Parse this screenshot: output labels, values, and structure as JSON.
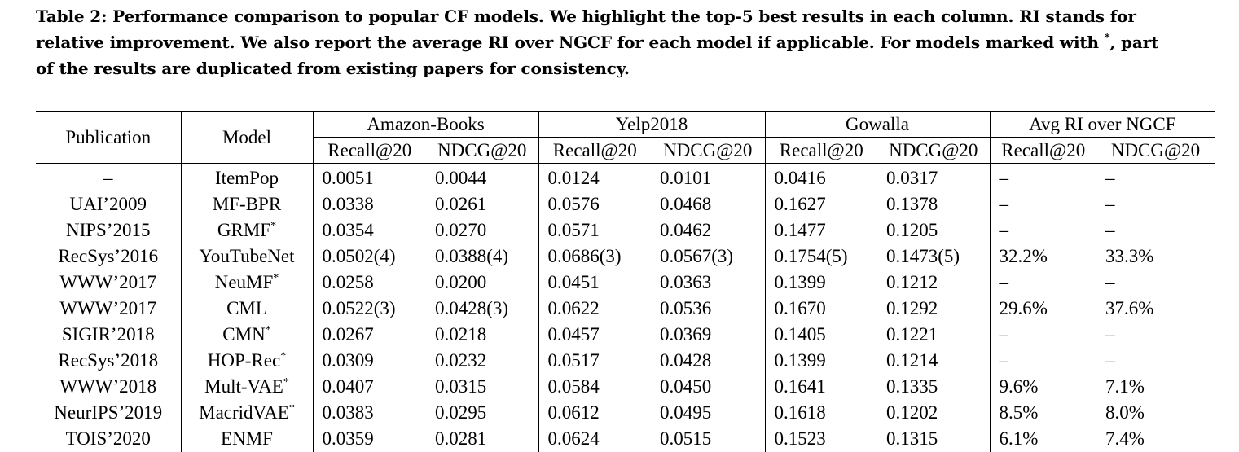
{
  "caption": {
    "line1": "Table 2: Performance comparison to popular CF models. We highlight the top-5 best results in each column. RI stands for",
    "line2_pre": "relative improvement. We also report the average RI over NGCF for each model if applicable. For models marked with ",
    "line2_mark": "*",
    "line2_post": ", part",
    "line3": "of the results are duplicated from existing papers for consistency."
  },
  "table": {
    "col_publication": "Publication",
    "col_model": "Model",
    "groups": [
      "Amazon-Books",
      "Yelp2018",
      "Gowalla",
      "Avg RI over NGCF"
    ],
    "metric_recall": "Recall@20",
    "metric_ndcg": "NDCG@20",
    "rows": [
      {
        "pub": "–",
        "model": "ItemPop",
        "mark": "",
        "v": [
          "0.0051",
          "0.0044",
          "0.0124",
          "0.0101",
          "0.0416",
          "0.0317",
          "–",
          "–"
        ],
        "bold": [
          false,
          false,
          false,
          false,
          false,
          false,
          false,
          false
        ]
      },
      {
        "pub": "UAI’2009",
        "model": "MF-BPR",
        "mark": "",
        "v": [
          "0.0338",
          "0.0261",
          "0.0576",
          "0.0468",
          "0.1627",
          "0.1378",
          "–",
          "–"
        ],
        "bold": [
          false,
          false,
          false,
          false,
          false,
          false,
          false,
          false
        ]
      },
      {
        "pub": "NIPS’2015",
        "model": "GRMF",
        "mark": "*",
        "v": [
          "0.0354",
          "0.0270",
          "0.0571",
          "0.0462",
          "0.1477",
          "0.1205",
          "–",
          "–"
        ],
        "bold": [
          false,
          false,
          false,
          false,
          false,
          false,
          false,
          false
        ]
      },
      {
        "pub": "RecSys’2016",
        "model": "YouTubeNet",
        "mark": "",
        "v": [
          "0.0502(4)",
          "0.0388(4)",
          "0.0686(3)",
          "0.0567(3)",
          "0.1754(5)",
          "0.1473(5)",
          "32.2%",
          "33.3%"
        ],
        "bold": [
          true,
          true,
          true,
          true,
          true,
          true,
          false,
          false
        ]
      },
      {
        "pub": "WWW’2017",
        "model": "NeuMF",
        "mark": "*",
        "v": [
          "0.0258",
          "0.0200",
          "0.0451",
          "0.0363",
          "0.1399",
          "0.1212",
          "–",
          "–"
        ],
        "bold": [
          false,
          false,
          false,
          false,
          false,
          false,
          false,
          false
        ]
      },
      {
        "pub": "WWW’2017",
        "model": "CML",
        "mark": "",
        "v": [
          "0.0522(3)",
          "0.0428(3)",
          "0.0622",
          "0.0536",
          "0.1670",
          "0.1292",
          "29.6%",
          "37.6%"
        ],
        "bold": [
          true,
          true,
          false,
          false,
          false,
          false,
          false,
          false
        ]
      },
      {
        "pub": "SIGIR’2018",
        "model": "CMN",
        "mark": "*",
        "v": [
          "0.0267",
          "0.0218",
          "0.0457",
          "0.0369",
          "0.1405",
          "0.1221",
          "–",
          "–"
        ],
        "bold": [
          false,
          false,
          false,
          false,
          false,
          false,
          false,
          false
        ]
      },
      {
        "pub": "RecSys’2018",
        "model": "HOP-Rec",
        "mark": "*",
        "v": [
          "0.0309",
          "0.0232",
          "0.0517",
          "0.0428",
          "0.1399",
          "0.1214",
          "–",
          "–"
        ],
        "bold": [
          false,
          false,
          false,
          false,
          false,
          false,
          false,
          false
        ]
      },
      {
        "pub": "WWW’2018",
        "model": "Mult-VAE",
        "mark": "*",
        "v": [
          "0.0407",
          "0.0315",
          "0.0584",
          "0.0450",
          "0.1641",
          "0.1335",
          "9.6%",
          "7.1%"
        ],
        "bold": [
          false,
          false,
          false,
          false,
          false,
          false,
          false,
          false
        ]
      },
      {
        "pub": "NeurIPS’2019",
        "model": "MacridVAE",
        "mark": "*",
        "v": [
          "0.0383",
          "0.0295",
          "0.0612",
          "0.0495",
          "0.1618",
          "0.1202",
          "8.5%",
          "8.0%"
        ],
        "bold": [
          false,
          false,
          false,
          false,
          false,
          false,
          false,
          false
        ]
      },
      {
        "pub": "TOIS’2020",
        "model": "ENMF",
        "mark": "",
        "v": [
          "0.0359",
          "0.0281",
          "0.0624",
          "0.0515",
          "0.1523",
          "0.1315",
          "6.1%",
          "7.4%"
        ],
        "bold": [
          false,
          false,
          false,
          false,
          false,
          false,
          false,
          false
        ]
      }
    ]
  }
}
